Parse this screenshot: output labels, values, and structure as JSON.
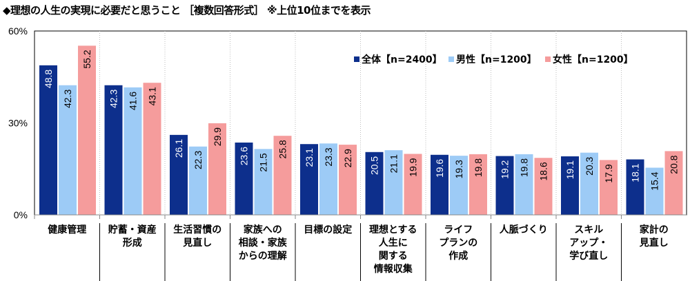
{
  "chart_data": {
    "type": "bar",
    "title": "◆理想の人生の実現に必要だと思うこと ［複数回答形式］ ※上位10位までを表示",
    "categories": [
      [
        "健康管理"
      ],
      [
        "貯蓄・資産",
        "形成"
      ],
      [
        "生活習慣の",
        "見直し"
      ],
      [
        "家族への",
        "相談・家族",
        "からの理解"
      ],
      [
        "目標の設定"
      ],
      [
        "理想とする",
        "人生に",
        "関する",
        "情報収集"
      ],
      [
        "ライフ",
        "プランの",
        "作成"
      ],
      [
        "人脈づくり"
      ],
      [
        "スキル",
        "アップ・",
        "学び直し"
      ],
      [
        "家計の",
        "見直し"
      ]
    ],
    "series": [
      {
        "name": "全体【n=2400】",
        "color": "#0d2f8c",
        "label_color": "#ffffff",
        "values": [
          48.8,
          42.3,
          26.1,
          23.6,
          23.1,
          20.5,
          19.6,
          19.2,
          19.1,
          18.1
        ]
      },
      {
        "name": "男性【n=1200】",
        "color": "#9dcbf6",
        "label_color": "#000000",
        "values": [
          42.3,
          41.6,
          22.3,
          21.5,
          23.3,
          21.1,
          19.3,
          19.8,
          20.3,
          15.4
        ]
      },
      {
        "name": "女性【n=1200】",
        "color": "#f59c9c",
        "label_color": "#000000",
        "values": [
          55.2,
          43.1,
          29.9,
          25.8,
          22.9,
          19.9,
          19.8,
          18.6,
          17.9,
          20.8
        ]
      }
    ],
    "ylim": [
      0,
      60
    ],
    "yticks": [
      "0%",
      "30%",
      "60%"
    ],
    "xlabel": "",
    "ylabel": "",
    "grid": "vertical dotted separators",
    "legend": "top-right"
  }
}
